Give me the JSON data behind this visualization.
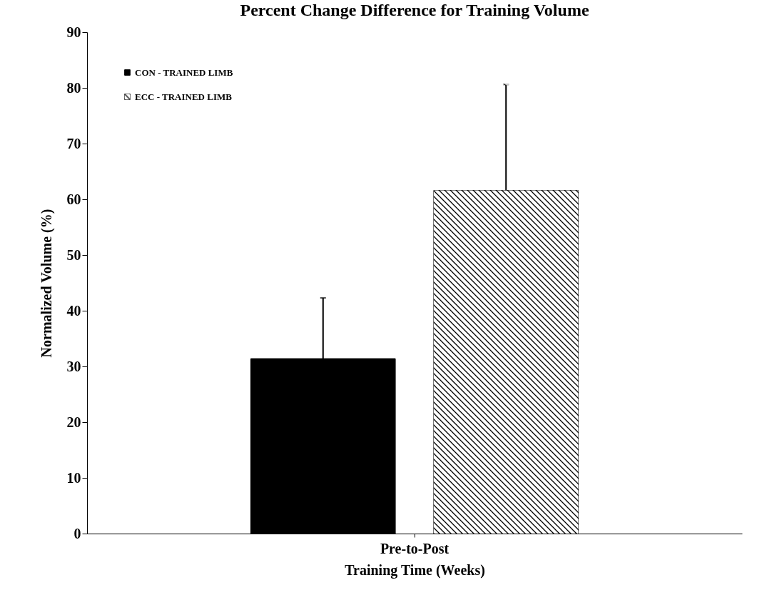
{
  "chart_data": {
    "type": "bar",
    "title": "Percent Change Difference for Training Volume",
    "xlabel": "Training Time (Weeks)",
    "ylabel": "Normalized Volume (%)",
    "categories": [
      "Pre-to-Post"
    ],
    "series": [
      {
        "name": "CON - TRAINED LIMB",
        "color": "#000000",
        "values": [
          31.4
        ],
        "errors": [
          [
            31.4,
            42.3
          ]
        ]
      },
      {
        "name": "ECC - TRAINED LIMB",
        "color": "#ffffff",
        "values": [
          61.6
        ],
        "errors": [
          [
            61.6,
            80.6
          ]
        ]
      }
    ],
    "ylim": [
      0,
      90
    ],
    "yticks": [
      0,
      10,
      20,
      30,
      40,
      50,
      60,
      70,
      80,
      90
    ],
    "grid": false,
    "legend": "top left"
  }
}
